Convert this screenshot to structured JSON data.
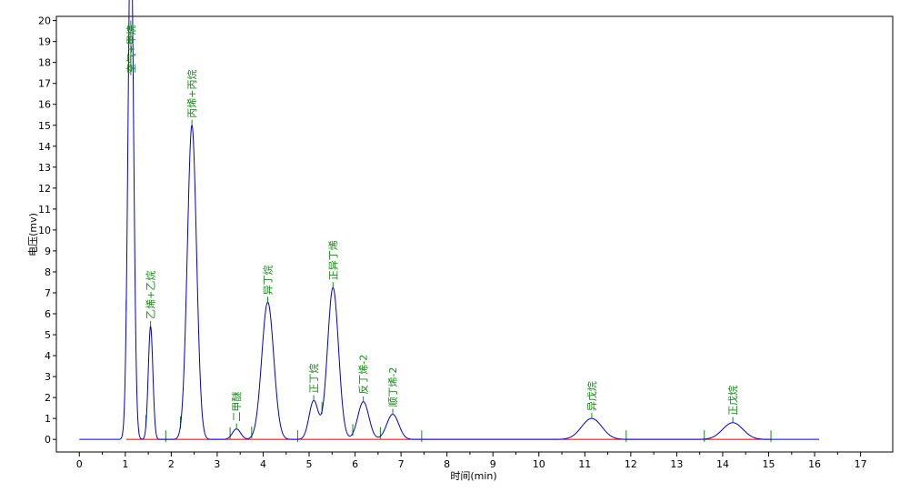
{
  "chart_data": {
    "type": "line",
    "title": "",
    "xlabel": "时间(min)",
    "ylabel": "电压(mv)",
    "xlim": [
      -0.5,
      17.7
    ],
    "ylim": [
      -0.6,
      20.2
    ],
    "x_ticks": [
      0,
      1,
      2,
      3,
      4,
      5,
      6,
      7,
      8,
      9,
      10,
      11,
      12,
      13,
      14,
      15,
      16,
      17
    ],
    "y_ticks": [
      0,
      1,
      2,
      3,
      4,
      5,
      6,
      7,
      8,
      9,
      10,
      11,
      12,
      13,
      14,
      15,
      16,
      17,
      18,
      19,
      20
    ],
    "grid": false,
    "colors": {
      "signal": "#0000cc",
      "baseline": "#dd0000",
      "peak_label": "#138a13",
      "marker": "#138a13"
    },
    "trace_range": [
      0,
      16.1
    ],
    "peaks": [
      {
        "label": "空气+甲烷",
        "rt": 1.12,
        "height": 25.0,
        "width": 0.06
      },
      {
        "label": "乙烯+乙烷",
        "rt": 1.55,
        "height": 5.4,
        "width": 0.05
      },
      {
        "label": "丙烯+丙烷",
        "rt": 2.45,
        "height": 15.0,
        "width": 0.1
      },
      {
        "label": "二甲醚",
        "rt": 3.42,
        "height": 0.5,
        "width": 0.09
      },
      {
        "label": "异丁烷",
        "rt": 4.1,
        "height": 6.55,
        "width": 0.13
      },
      {
        "label": "正丁烷",
        "rt": 5.1,
        "height": 1.85,
        "width": 0.1
      },
      {
        "label": "正异丁烯",
        "rt": 5.52,
        "height": 7.25,
        "width": 0.12
      },
      {
        "label": "反丁烯-2",
        "rt": 6.18,
        "height": 1.8,
        "width": 0.12
      },
      {
        "label": "顺丁烯-2",
        "rt": 6.82,
        "height": 1.2,
        "width": 0.13
      },
      {
        "label": "异戊烷",
        "rt": 11.15,
        "height": 1.0,
        "width": 0.22
      },
      {
        "label": "正戊烷",
        "rt": 14.22,
        "height": 0.8,
        "width": 0.22
      }
    ],
    "integration_markers": [
      1.02,
      1.45,
      1.88,
      2.2,
      3.28,
      3.75,
      4.75,
      5.28,
      5.95,
      6.55,
      7.45,
      11.9,
      13.6,
      15.05
    ]
  }
}
